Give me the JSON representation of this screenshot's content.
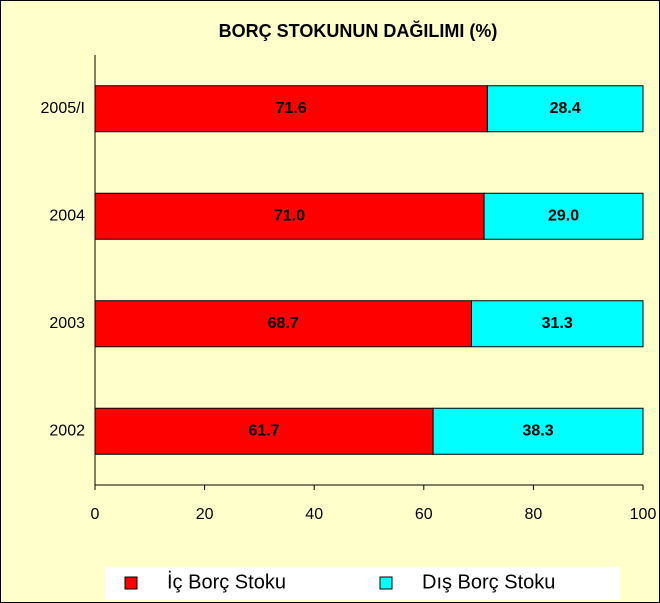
{
  "chart_data": {
    "type": "bar",
    "orientation": "horizontal",
    "stacked": true,
    "title": "BORÇ STOKUNUN DAĞILIMI (%)",
    "categories": [
      "2005/I",
      "2004",
      "2003",
      "2002"
    ],
    "series": [
      {
        "name": "İç Borç Stoku",
        "color": "#ff0000",
        "values": [
          71.6,
          71.0,
          68.7,
          61.7
        ],
        "value_labels": [
          "71.6",
          "71.0",
          "68.7",
          "61.7"
        ]
      },
      {
        "name": "Dış Borç Stoku",
        "color": "#00ffff",
        "values": [
          28.4,
          29.0,
          31.3,
          38.3
        ],
        "value_labels": [
          "28.4",
          "29.0",
          "31.3",
          "38.3"
        ]
      }
    ],
    "xlim": [
      0,
      100
    ],
    "xticks": [
      0,
      20,
      40,
      60,
      80,
      100
    ],
    "grid": false,
    "legend": "bottom"
  }
}
